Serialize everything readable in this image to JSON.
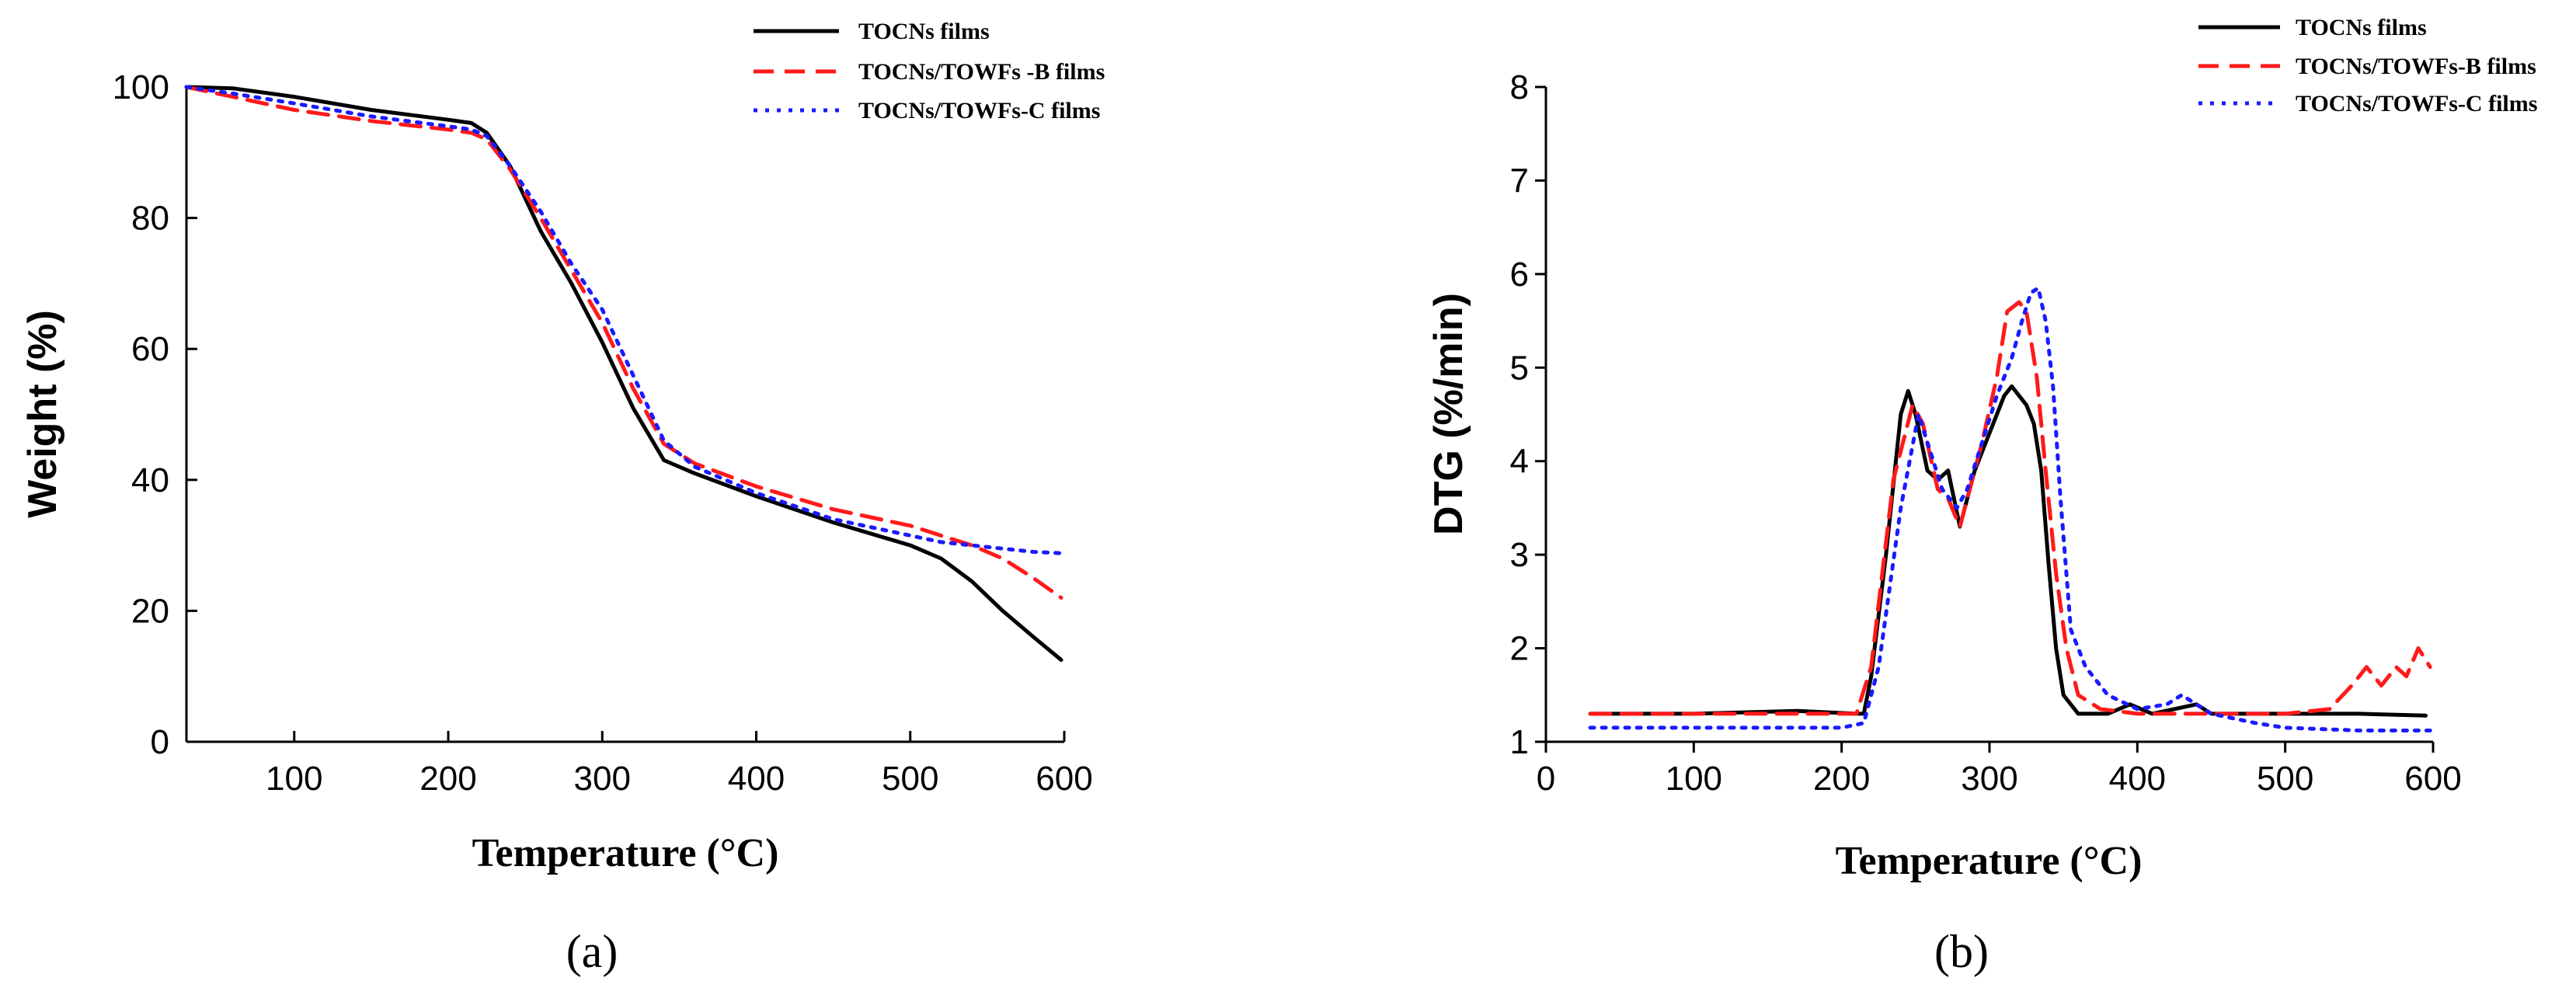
{
  "chart_data": [
    {
      "panel_label": "(a)",
      "type": "line",
      "xlabel": "Temperature (°C)",
      "ylabel": "Weight (%)",
      "xlim": [
        30,
        600
      ],
      "ylim": [
        0,
        100
      ],
      "xticks": [
        100,
        200,
        300,
        400,
        500,
        600
      ],
      "yticks": [
        0,
        20,
        40,
        60,
        80,
        100
      ],
      "legend_position": "top-right",
      "series": [
        {
          "name": "TOCNs films",
          "color": "#000000",
          "style": "solid",
          "x": [
            30,
            60,
            100,
            150,
            200,
            215,
            225,
            240,
            260,
            280,
            300,
            320,
            340,
            360,
            400,
            450,
            500,
            520,
            540,
            560,
            580,
            598
          ],
          "y": [
            100,
            99.8,
            98.5,
            96.5,
            95,
            94.5,
            93,
            88,
            78,
            70,
            61,
            51,
            43,
            41,
            37.5,
            33.5,
            30,
            28,
            24.5,
            20,
            16,
            12.5
          ]
        },
        {
          "name": "TOCNs/TOWFs -B films",
          "color": "#ff1a1a",
          "style": "dashed",
          "x": [
            30,
            60,
            100,
            150,
            200,
            215,
            225,
            240,
            260,
            280,
            300,
            320,
            340,
            360,
            400,
            450,
            500,
            520,
            540,
            560,
            580,
            598
          ],
          "y": [
            100,
            98.5,
            96.5,
            94.8,
            93.5,
            93,
            92,
            87.5,
            80,
            72,
            64,
            54,
            45.5,
            42.5,
            39,
            35.5,
            33,
            31.5,
            30,
            28,
            25,
            22
          ]
        },
        {
          "name": "TOCNs/TOWFs-C films",
          "color": "#1a1aff",
          "style": "dotted",
          "x": [
            30,
            60,
            100,
            150,
            200,
            215,
            225,
            240,
            260,
            280,
            300,
            320,
            340,
            360,
            400,
            450,
            500,
            520,
            540,
            560,
            580,
            598
          ],
          "y": [
            100,
            99,
            97.5,
            95.5,
            94,
            93.5,
            92.5,
            88,
            81,
            73,
            66,
            56,
            46,
            42,
            38,
            34,
            31.5,
            30.5,
            30,
            29.5,
            29,
            28.8
          ]
        }
      ]
    },
    {
      "panel_label": "(b)",
      "type": "line",
      "xlabel": "Temperature (°C)",
      "ylabel": "DTG (%/min)",
      "xlim": [
        0,
        600
      ],
      "ylim": [
        1,
        8
      ],
      "xticks": [
        0,
        100,
        200,
        300,
        400,
        500,
        600
      ],
      "yticks": [
        1,
        2,
        3,
        4,
        5,
        6,
        7,
        8
      ],
      "legend_position": "top-right",
      "series": [
        {
          "name": "TOCNs films",
          "color": "#000000",
          "style": "solid",
          "x": [
            30,
            100,
            170,
            210,
            215,
            220,
            230,
            240,
            245,
            250,
            258,
            265,
            272,
            280,
            285,
            290,
            300,
            310,
            315,
            320,
            325,
            330,
            335,
            340,
            345,
            350,
            360,
            380,
            395,
            410,
            440,
            450,
            500,
            550,
            595
          ],
          "y": [
            1.3,
            1.3,
            1.33,
            1.3,
            1.3,
            1.7,
            3.0,
            4.5,
            4.75,
            4.5,
            3.9,
            3.8,
            3.9,
            3.3,
            3.6,
            3.9,
            4.3,
            4.7,
            4.8,
            4.7,
            4.6,
            4.4,
            3.9,
            2.9,
            2.0,
            1.5,
            1.3,
            1.3,
            1.4,
            1.3,
            1.4,
            1.3,
            1.3,
            1.3,
            1.28
          ]
        },
        {
          "name": "TOCNs/TOWFs-B films",
          "color": "#ff1a1a",
          "style": "dashed",
          "x": [
            30,
            100,
            200,
            210,
            220,
            235,
            248,
            255,
            265,
            272,
            280,
            285,
            295,
            305,
            312,
            320,
            325,
            332,
            338,
            345,
            352,
            360,
            375,
            400,
            450,
            500,
            530,
            545,
            555,
            565,
            575,
            582,
            590,
            598
          ],
          "y": [
            1.3,
            1.3,
            1.3,
            1.3,
            1.8,
            3.8,
            4.6,
            4.4,
            3.7,
            3.6,
            3.3,
            3.6,
            4.2,
            4.9,
            5.6,
            5.7,
            5.6,
            4.9,
            3.9,
            2.8,
            2.0,
            1.5,
            1.35,
            1.3,
            1.3,
            1.3,
            1.35,
            1.6,
            1.8,
            1.6,
            1.8,
            1.7,
            2.0,
            1.8
          ]
        },
        {
          "name": "TOCNs/TOWFs-C films",
          "color": "#1a1aff",
          "style": "dotted",
          "x": [
            30,
            100,
            200,
            215,
            225,
            240,
            252,
            258,
            268,
            278,
            285,
            295,
            305,
            315,
            322,
            328,
            333,
            338,
            343,
            348,
            355,
            365,
            380,
            400,
            420,
            430,
            450,
            480,
            500,
            550,
            598
          ],
          "y": [
            1.15,
            1.15,
            1.15,
            1.2,
            1.8,
            3.5,
            4.5,
            4.2,
            3.7,
            3.5,
            3.7,
            4.2,
            4.7,
            5.1,
            5.5,
            5.8,
            5.85,
            5.5,
            4.8,
            3.6,
            2.2,
            1.8,
            1.5,
            1.35,
            1.4,
            1.5,
            1.3,
            1.2,
            1.15,
            1.12,
            1.12
          ]
        }
      ]
    }
  ]
}
